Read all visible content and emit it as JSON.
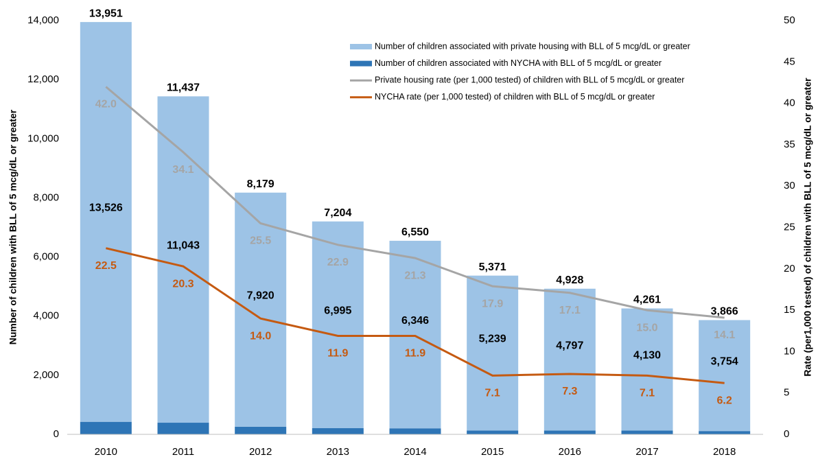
{
  "chart_data": {
    "type": "bar",
    "categories": [
      "2010",
      "2011",
      "2012",
      "2013",
      "2014",
      "2015",
      "2016",
      "2017",
      "2018"
    ],
    "series": [
      {
        "name": "Number of children associated with private housing with BLL of 5 mcg/dL or greater",
        "type": "bar",
        "color": "#9dc3e6",
        "values": [
          13526,
          11043,
          7920,
          6995,
          6346,
          5239,
          4797,
          4130,
          3754
        ],
        "value_labels": [
          "13,526",
          "11,043",
          "7,920",
          "6,995",
          "6,346",
          "5,239",
          "4,797",
          "4,130",
          "3,754"
        ]
      },
      {
        "name": "Number of children associated with NYCHA with BLL of 5 mcg/dL or greater",
        "type": "bar",
        "color": "#2e75b6",
        "values": [
          425,
          394,
          259,
          209,
          204,
          132,
          131,
          131,
          112
        ]
      },
      {
        "name": "Private housing rate (per 1,000 tested) of children with BLL of 5 mcg/dL or greater",
        "type": "line",
        "axis": "y2",
        "color": "#a5a5a5",
        "values": [
          42.0,
          34.1,
          25.5,
          22.9,
          21.3,
          17.9,
          17.1,
          15.0,
          14.1
        ],
        "value_labels": [
          "42.0",
          "34.1",
          "25.5",
          "22.9",
          "21.3",
          "17.9",
          "17.1",
          "15.0",
          "14.1"
        ]
      },
      {
        "name": "NYCHA rate (per 1,000 tested) of children with BLL of 5 mcg/dL or greater",
        "type": "line",
        "axis": "y2",
        "color": "#c55a11",
        "values": [
          22.5,
          20.3,
          14.0,
          11.9,
          11.9,
          7.1,
          7.3,
          7.1,
          6.2
        ],
        "value_labels": [
          "22.5",
          "20.3",
          "14.0",
          "11.9",
          "11.9",
          "7.1",
          "7.3",
          "7.1",
          "6.2"
        ]
      }
    ],
    "totals": {
      "values": [
        13951,
        11437,
        8179,
        7204,
        6550,
        5371,
        4928,
        4261,
        3866
      ],
      "value_labels": [
        "13,951",
        "11,437",
        "8,179",
        "7,204",
        "6,550",
        "5,371",
        "4,928",
        "4,261",
        "3,866"
      ]
    },
    "ylabel": "Number of children with BLL of 5 mcg/dL or greater",
    "y2label": "Rate (per1,000 tested) of children with BLL of 5 mcg/dL or greater",
    "ylim": [
      0,
      14000
    ],
    "yticks": [
      0,
      {
        "value": 2000,
        "label": "2,000"
      },
      {
        "value": 4000,
        "label": "4,000"
      },
      {
        "value": 6000,
        "label": "6,000"
      },
      {
        "value": 8000,
        "label": "8,000"
      },
      {
        "value": 10000,
        "label": "10,000"
      },
      {
        "value": 12000,
        "label": "12,000"
      },
      {
        "value": 14000,
        "label": "14,000"
      }
    ],
    "y2lim": [
      0,
      50
    ],
    "y2ticks": [
      0,
      5,
      10,
      15,
      20,
      25,
      30,
      35,
      40,
      45,
      50
    ],
    "grid": false,
    "legend": "upper right"
  }
}
